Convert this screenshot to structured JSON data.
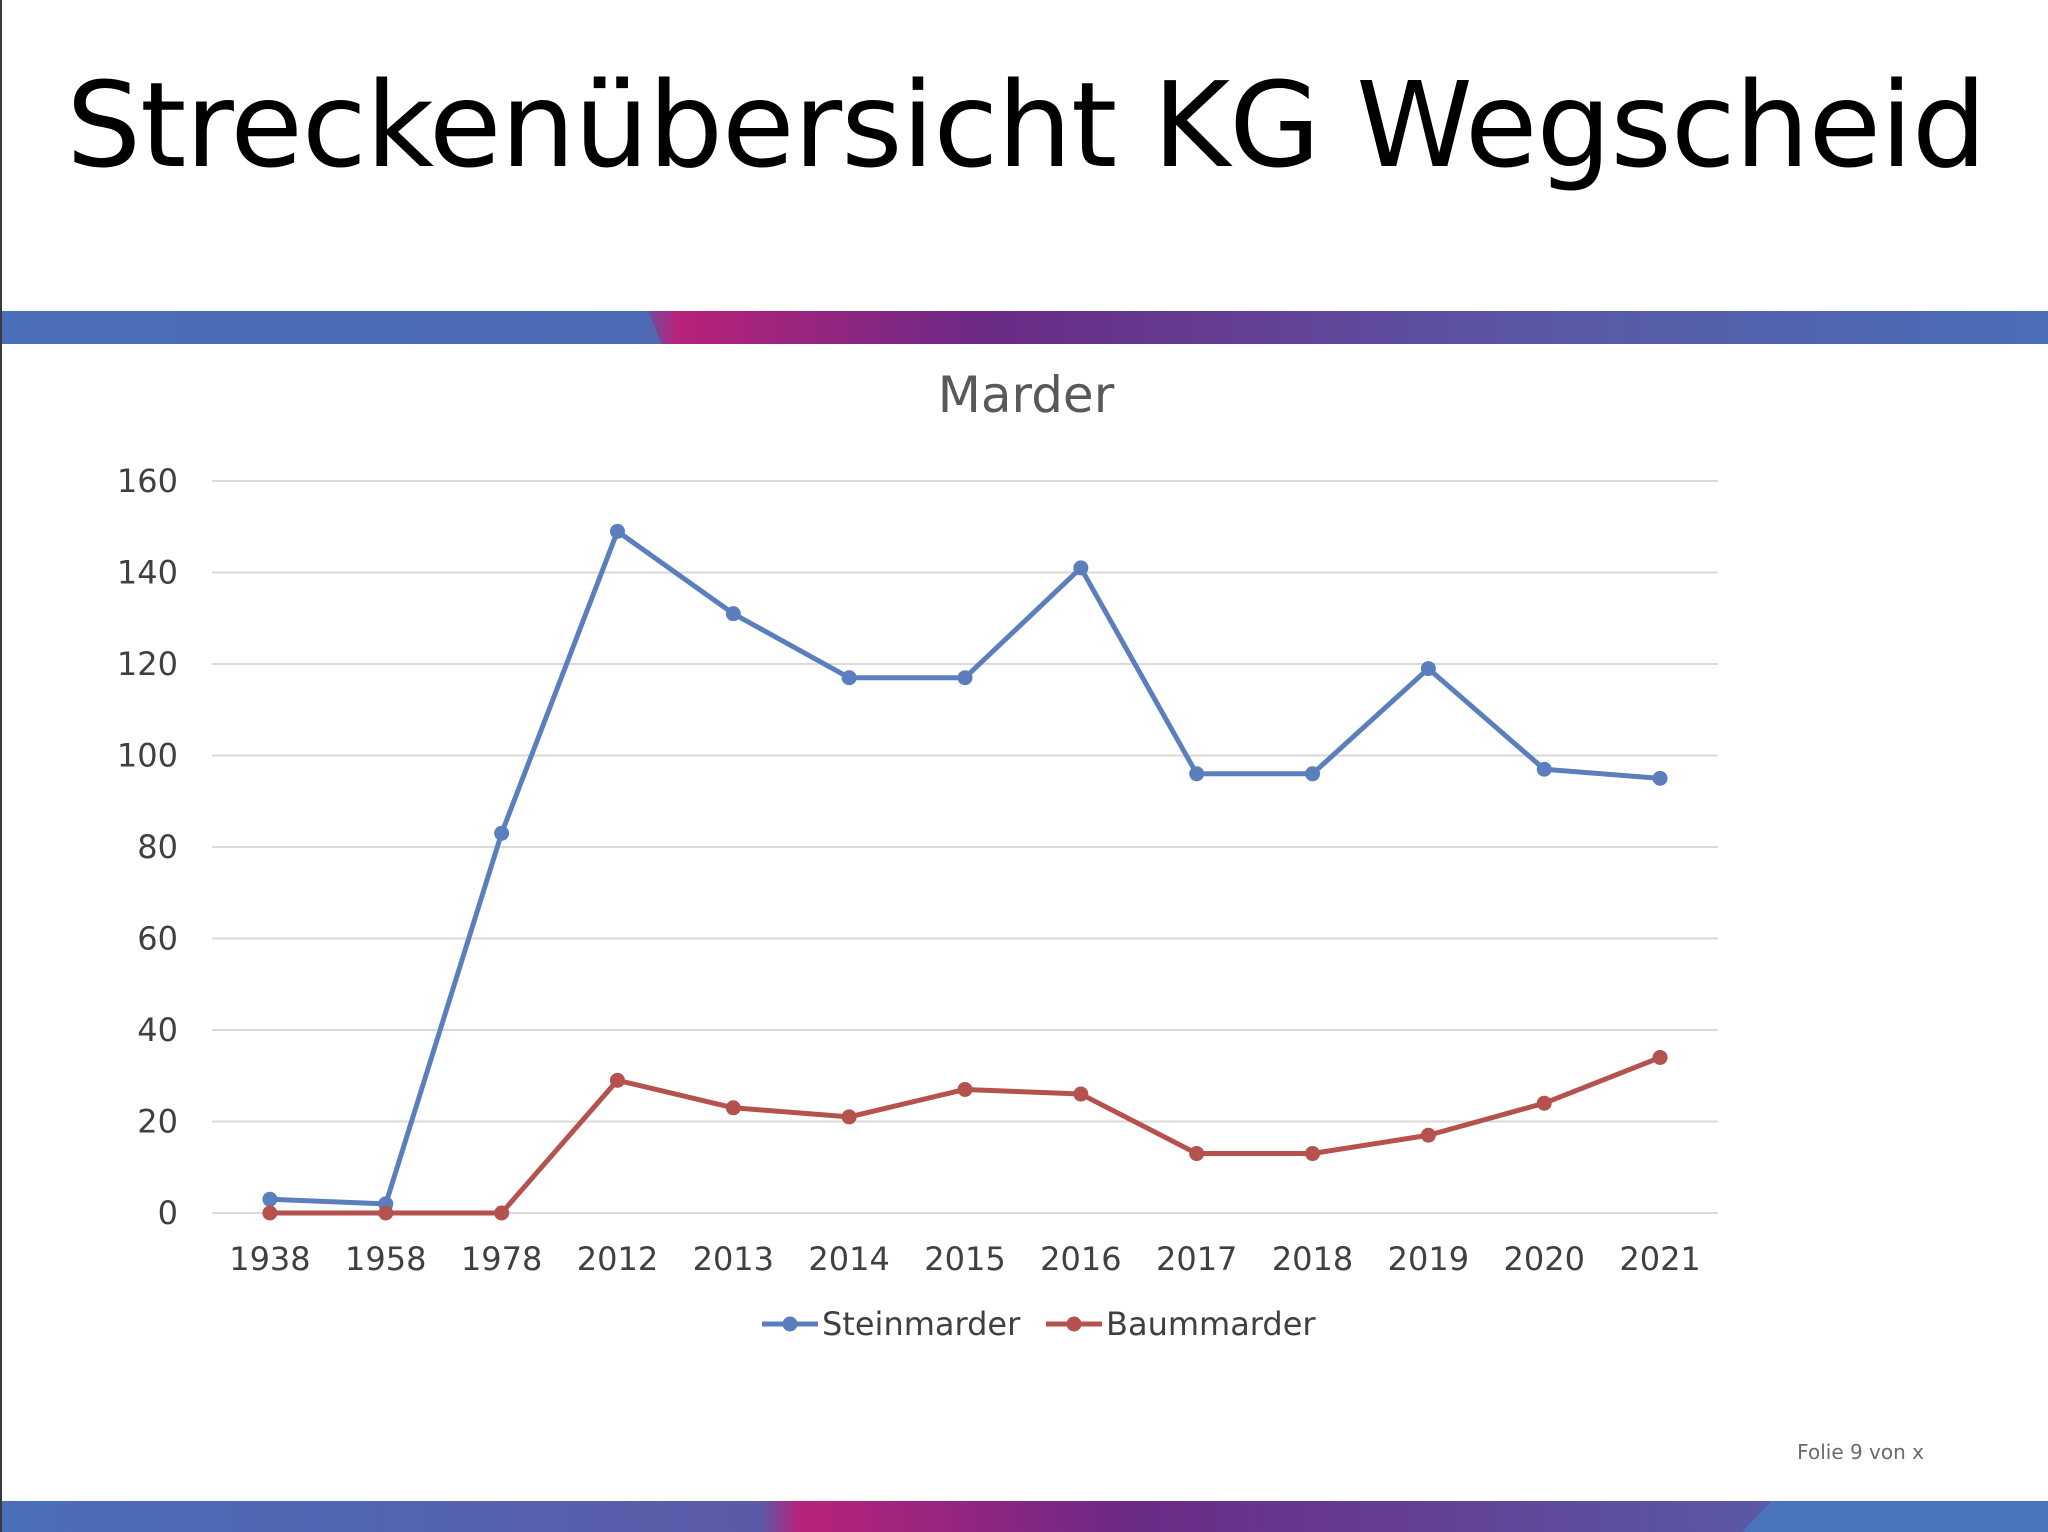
{
  "slide": {
    "title": "Streckenübersicht KG Wegscheid",
    "footer": "Folie 9 von x"
  },
  "colors": {
    "band_blue": "#4a6fb8",
    "band_magenta": "#b8227a",
    "band_purple": "#6b2a86",
    "steinmarder": "#5b7fbd",
    "baummarder": "#b5524e",
    "gridline": "#d9d9d9"
  },
  "chart_data": {
    "type": "line",
    "title": "Marder",
    "xlabel": "",
    "ylabel": "",
    "categories": [
      "1938",
      "1958",
      "1978",
      "2012",
      "2013",
      "2014",
      "2015",
      "2016",
      "2017",
      "2018",
      "2019",
      "2020",
      "2021"
    ],
    "ylim": [
      0,
      160
    ],
    "yticks": [
      0,
      20,
      40,
      60,
      80,
      100,
      120,
      140,
      160
    ],
    "grid": true,
    "legend": "bottom",
    "series": [
      {
        "name": "Steinmarder",
        "color": "#5b7fbd",
        "values": [
          3,
          2,
          83,
          149,
          131,
          117,
          117,
          141,
          96,
          96,
          119,
          97,
          95
        ]
      },
      {
        "name": "Baummarder",
        "color": "#b5524e",
        "values": [
          0,
          0,
          0,
          29,
          23,
          21,
          27,
          26,
          13,
          13,
          17,
          24,
          34
        ]
      }
    ]
  }
}
